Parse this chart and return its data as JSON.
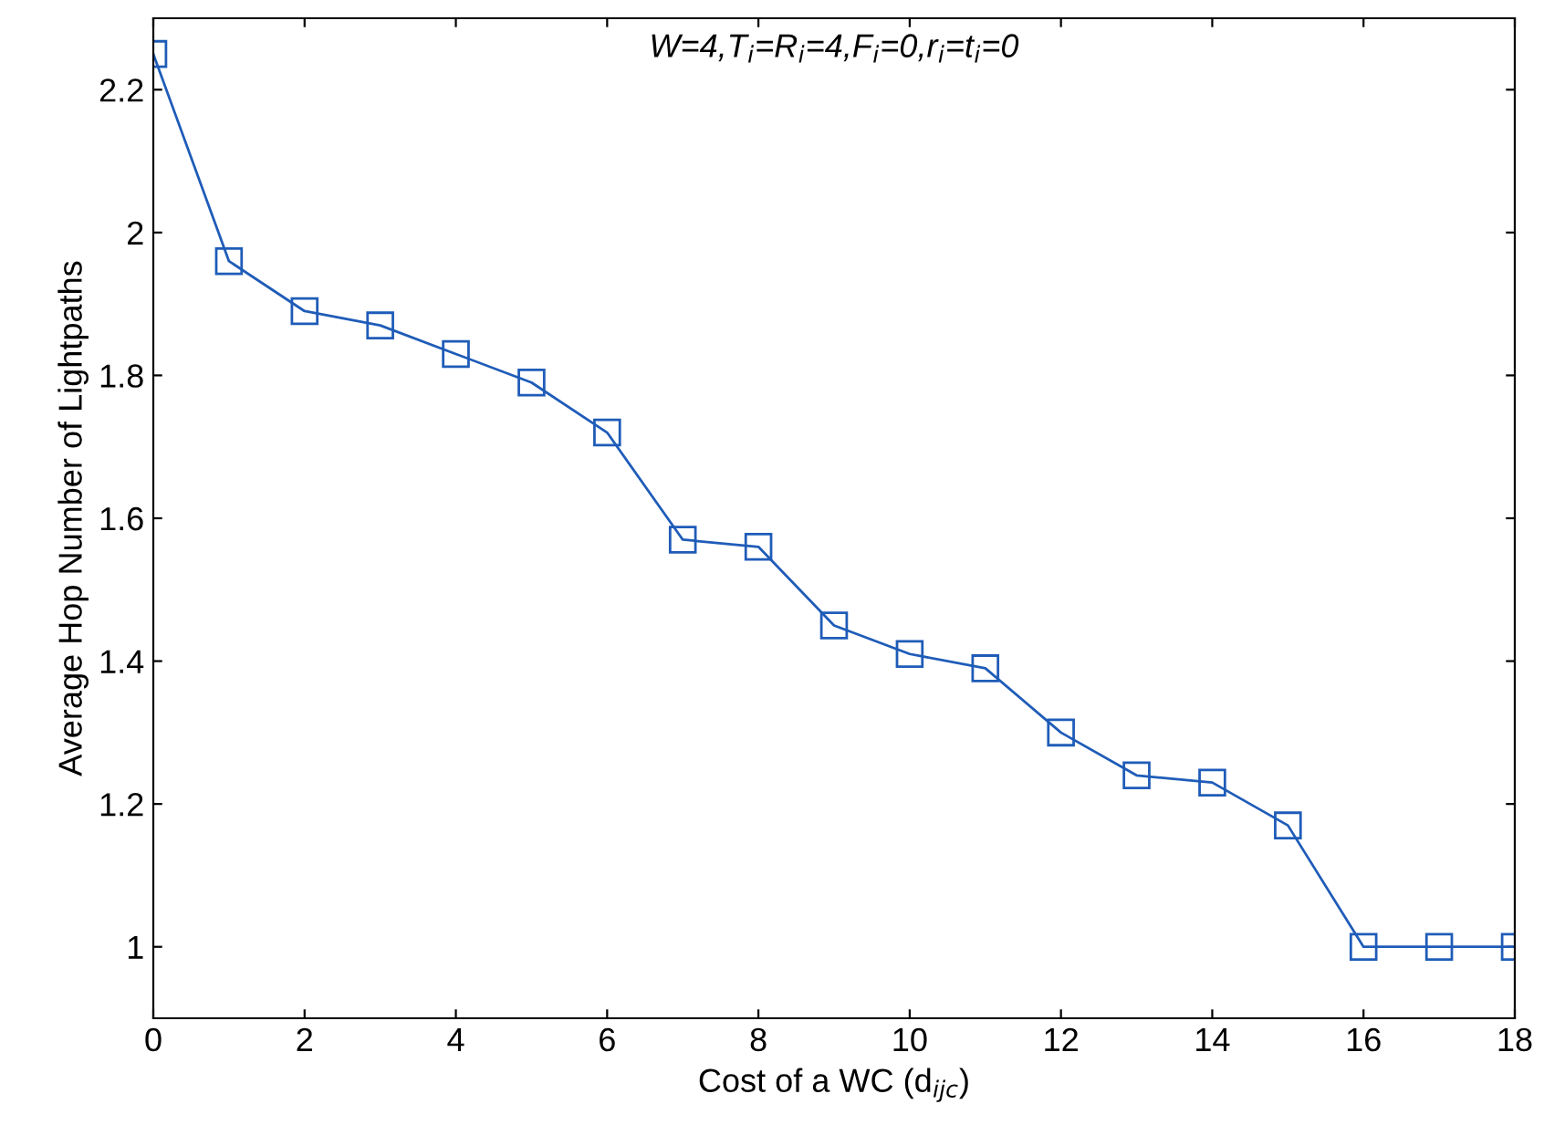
{
  "chart_data": {
    "type": "line",
    "title": "W=4,T$_{i}$=R$_{i}$=4,F$_{i}$=0,r$_{i}$=t$_{i}$=0",
    "xlabel": "Cost of a WC (d$_{ijc}$)",
    "ylabel": "Average Hop Number of Lightpaths",
    "x": [
      0,
      1,
      2,
      3,
      4,
      5,
      6,
      7,
      8,
      9,
      10,
      11,
      12,
      13,
      14,
      15,
      16,
      17,
      18
    ],
    "series": [
      {
        "color": "#1f5cb8",
        "values": [
          2.25,
          1.96,
          1.89,
          1.87,
          1.83,
          1.79,
          1.72,
          1.57,
          1.56,
          1.45,
          1.41,
          1.39,
          1.3,
          1.24,
          1.23,
          1.17,
          1.0,
          1.0,
          1.0
        ]
      }
    ],
    "xlim": [
      0,
      18
    ],
    "xticks": [
      0,
      2,
      4,
      6,
      8,
      10,
      12,
      14,
      16,
      18
    ],
    "ylim": [
      0.9,
      2.3
    ],
    "yticks": [
      1,
      1.2,
      1.4,
      1.6,
      1.8,
      2,
      2.2
    ],
    "grid": false,
    "legend": false,
    "marker": "square",
    "line_style": "solid"
  }
}
